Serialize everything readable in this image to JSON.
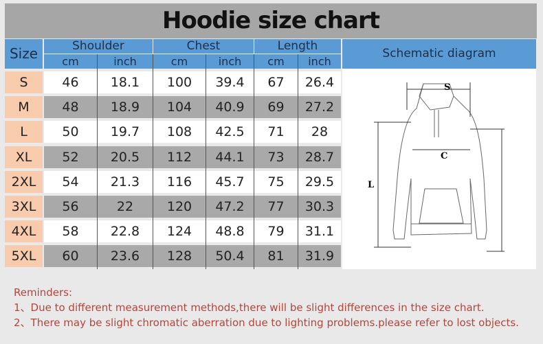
{
  "title": "Hoodie size chart",
  "header": {
    "size": "Size",
    "groups": [
      "Shoulder",
      "Chest",
      "Length"
    ],
    "units": [
      "cm",
      "inch",
      "cm",
      "inch",
      "cm",
      "inch"
    ],
    "diagram": "Schematic diagram"
  },
  "rows": [
    {
      "size": "S",
      "values": [
        "46",
        "18.1",
        "100",
        "39.4",
        "67",
        "26.4"
      ]
    },
    {
      "size": "M",
      "values": [
        "48",
        "18.9",
        "104",
        "40.9",
        "69",
        "27.2"
      ]
    },
    {
      "size": "L",
      "values": [
        "50",
        "19.7",
        "108",
        "42.5",
        "71",
        "28"
      ]
    },
    {
      "size": "XL",
      "values": [
        "52",
        "20.5",
        "112",
        "44.1",
        "73",
        "28.7"
      ]
    },
    {
      "size": "2XL",
      "values": [
        "54",
        "21.3",
        "116",
        "45.7",
        "75",
        "29.5"
      ]
    },
    {
      "size": "3XL",
      "values": [
        "56",
        "22",
        "120",
        "47.2",
        "77",
        "30.3"
      ]
    },
    {
      "size": "4XL",
      "values": [
        "58",
        "22.8",
        "124",
        "48.8",
        "79",
        "31.1"
      ]
    },
    {
      "size": "5XL",
      "values": [
        "60",
        "23.6",
        "128",
        "50.4",
        "81",
        "31.9"
      ]
    }
  ],
  "diagram_labels": {
    "shoulder": "S",
    "chest": "C",
    "length": "L"
  },
  "reminders": {
    "heading": "Reminders:",
    "items": [
      "1、Due to different measurement methods,there will be slight differences in the size chart.",
      "2、There may be slight chromatic aberration due to lighting problems.please refer to lost objects."
    ]
  },
  "colors": {
    "header_blue": "#5b9bd5",
    "size_cell": "#f8cbad",
    "grey_row": "#a9a9a9",
    "reminder_text": "#b5453a"
  }
}
